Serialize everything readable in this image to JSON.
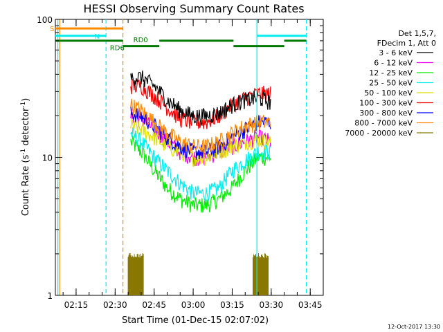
{
  "chart_data": {
    "type": "line",
    "title": "HESSI Observing Summary Count Rates",
    "xlabel": "Start Time (01-Dec-15 02:07:02)",
    "ylabel_main": "Count Rate (s",
    "ylabel_sup1": "-1",
    "ylabel_mid": " detector",
    "ylabel_sup2": "-1",
    "ylabel_end": ")",
    "y_scale": "log",
    "ylim": [
      1,
      100
    ],
    "xlim": [
      "02:07:02",
      "03:50:00"
    ],
    "x_tick_labels": [
      "02:15",
      "02:30",
      "02:45",
      "03:00",
      "03:15",
      "03:30",
      "03:45"
    ],
    "x_tick_values": [
      "02:15",
      "02:30",
      "02:45",
      "03:00",
      "03:15",
      "03:30",
      "03:45"
    ],
    "y_tick_labels": [
      "1",
      "10",
      "100"
    ],
    "y_tick_values": [
      1,
      10,
      100
    ],
    "legend_title": [
      "Det 1,5,7,",
      "FDecim 1, Att 0"
    ],
    "legend_position": "right",
    "series": [
      {
        "name": "3 - 6 keV",
        "color": "#000000",
        "x": [
          "02:36",
          "02:40",
          "02:45",
          "02:50",
          "02:55",
          "03:00",
          "03:05",
          "03:10",
          "03:15",
          "03:20",
          "03:25",
          "03:30"
        ],
        "values": [
          38,
          38,
          33,
          26,
          22,
          20,
          20,
          21,
          24,
          26,
          27,
          25
        ]
      },
      {
        "name": "6 - 12 keV",
        "color": "#ee00ee",
        "x": [
          "02:36",
          "02:40",
          "02:45",
          "02:50",
          "02:55",
          "03:00",
          "03:05",
          "03:10",
          "03:15",
          "03:20",
          "03:25",
          "03:30"
        ],
        "values": [
          20,
          19,
          16,
          13,
          11,
          10,
          10,
          11,
          12,
          13,
          14,
          13
        ]
      },
      {
        "name": "12 - 25 keV",
        "color": "#00ee00",
        "x": [
          "02:36",
          "02:40",
          "02:45",
          "02:50",
          "02:55",
          "03:00",
          "03:05",
          "03:10",
          "03:15",
          "03:20",
          "03:25",
          "03:30"
        ],
        "values": [
          13,
          11,
          8,
          6,
          5,
          4.5,
          4.5,
          5,
          6,
          8,
          10,
          10
        ]
      },
      {
        "name": "25 - 50 keV",
        "color": "#00eeee",
        "x": [
          "02:36",
          "02:40",
          "02:45",
          "02:50",
          "02:55",
          "03:00",
          "03:05",
          "03:10",
          "03:15",
          "03:20",
          "03:25",
          "03:30"
        ],
        "values": [
          15,
          13,
          10,
          8,
          6.5,
          5.5,
          5.5,
          6,
          8,
          9.5,
          11,
          11
        ]
      },
      {
        "name": "50 - 100 keV",
        "color": "#dddd00",
        "x": [
          "02:36",
          "02:40",
          "02:45",
          "02:50",
          "02:55",
          "03:00",
          "03:05",
          "03:10",
          "03:15",
          "03:20",
          "03:25",
          "03:30"
        ],
        "values": [
          17,
          16,
          14,
          12,
          11,
          10,
          10,
          11,
          12,
          13,
          13.5,
          13
        ]
      },
      {
        "name": "100 - 300 keV",
        "color": "#ee0000",
        "x": [
          "02:36",
          "02:40",
          "02:45",
          "02:50",
          "02:55",
          "03:00",
          "03:05",
          "03:10",
          "03:15",
          "03:20",
          "03:25",
          "03:30"
        ],
        "values": [
          33,
          33,
          28,
          23,
          19,
          18,
          18,
          20,
          24,
          27,
          29,
          29
        ]
      },
      {
        "name": "300 - 800 keV",
        "color": "#0000ee",
        "x": [
          "02:36",
          "02:40",
          "02:45",
          "02:50",
          "02:55",
          "03:00",
          "03:05",
          "03:10",
          "03:15",
          "03:20",
          "03:25",
          "03:30"
        ],
        "values": [
          21,
          20,
          17,
          14,
          12,
          11,
          11,
          12,
          14,
          16,
          18,
          18
        ]
      },
      {
        "name": "800 - 7000 keV",
        "color": "#ff8800",
        "x": [
          "02:36",
          "02:40",
          "02:45",
          "02:50",
          "02:55",
          "03:00",
          "03:05",
          "03:10",
          "03:15",
          "03:20",
          "03:25",
          "03:30"
        ],
        "values": [
          24,
          22,
          18,
          15,
          13,
          12,
          12,
          13,
          15,
          17,
          18,
          18
        ]
      },
      {
        "name": "7000 - 20000 keV",
        "color": "#887700",
        "x": [
          "02:35",
          "02:38",
          "02:41",
          "03:23",
          "03:26",
          "03:29"
        ],
        "values": [
          1.95,
          1.9,
          1.95,
          1.95,
          1.9,
          1.95
        ]
      }
    ],
    "annotations": {
      "S": {
        "label": "S",
        "color": "#ff8800",
        "x_start": "02:07:02",
        "x_end": "02:33:00",
        "y": 86
      },
      "N": {
        "label": "N",
        "color": "#00eeee",
        "segments": [
          [
            "02:07:02",
            "02:26:30"
          ],
          [
            "03:24:30",
            "03:43:30"
          ]
        ],
        "y": 76
      },
      "RD0": {
        "label": "RD0",
        "color": "#007700",
        "segments": [
          [
            "02:07:02",
            "02:33:00"
          ],
          [
            "02:47:00",
            "03:15:30"
          ],
          [
            "03:35:00",
            "03:43:30"
          ]
        ],
        "y": 70
      },
      "RD6": {
        "label": "RD6",
        "color": "#007700",
        "segments": [
          [
            "02:33:00",
            "02:47:00"
          ],
          [
            "03:15:30",
            "03:35:00"
          ]
        ],
        "y": 64
      },
      "vlines": [
        {
          "x": "02:08:00",
          "color": "#00eeee",
          "style": "solid"
        },
        {
          "x": "02:08:40",
          "color": "#ff8800",
          "style": "solid"
        },
        {
          "x": "02:26:30",
          "color": "#00eeee",
          "style": "dashed"
        },
        {
          "x": "02:33:00",
          "color": "#ff8800",
          "style": "dashed"
        },
        {
          "x": "03:24:30",
          "color": "#00eeee",
          "style": "solid"
        },
        {
          "x": "03:43:30",
          "color": "#00eeee",
          "style": "dashed"
        }
      ]
    },
    "footer_date": "12-Oct-2017 13:30"
  }
}
